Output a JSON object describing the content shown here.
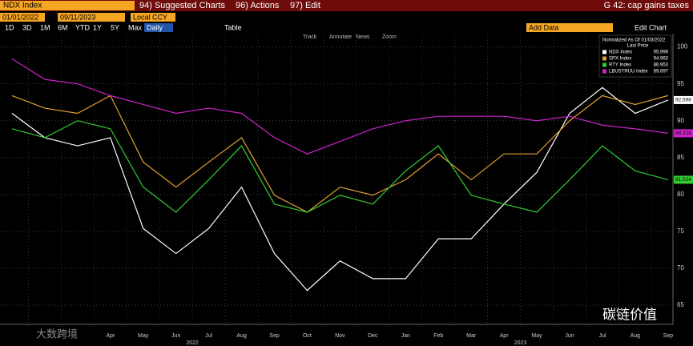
{
  "toolbar": {
    "security": "NDX Index",
    "menu": [
      "94) Suggested Charts",
      "96) Actions",
      "97) Edit"
    ],
    "function": "G 42: cap gains taxes",
    "start_date": "01/01/2022",
    "end_date": "09/11/2023",
    "currency": "Local CCY",
    "ranges": [
      "1D",
      "3D",
      "1M",
      "6M",
      "YTD",
      "1Y",
      "5Y",
      "Max"
    ],
    "frequency": "Daily",
    "table": "Table",
    "add_data": "Add Data",
    "edit_chart": "Edit Chart",
    "tools": [
      "Track",
      "Annotate",
      "News",
      "Zoom"
    ]
  },
  "watermarks": [
    "大数跨境",
    "碳链价值"
  ],
  "chart_data": {
    "type": "line",
    "legend_title": "Normalized As Of 01/03/2022",
    "legend_subtitle": "Last Price",
    "legend": "top-right",
    "grid": true,
    "categories": [
      null,
      null,
      null,
      "Apr",
      "May",
      "Jun",
      "Jul",
      "Aug",
      "Sep",
      "Oct",
      "Nov",
      "Dec",
      "Jan",
      "Feb",
      "Mar",
      "Apr",
      "May",
      "Jun",
      "Jul",
      "Aug",
      "Sep"
    ],
    "x_group_labels": [
      {
        "label": "2022",
        "index": 5.5
      },
      {
        "label": "2023",
        "index": 15.5
      }
    ],
    "ylim": [
      62.4,
      101.8
    ],
    "yticks": [
      65,
      70,
      75,
      80,
      85,
      90,
      95,
      100
    ],
    "series": [
      {
        "name": "NDX Index",
        "legend_value": "95.998",
        "last_label": "92.598",
        "color": "#ffffff",
        "values": [
          91,
          87.7,
          86.6,
          87.7,
          75.4,
          72,
          75.4,
          81,
          72,
          67,
          71,
          68.6,
          68.6,
          74,
          74,
          78.7,
          83,
          91,
          94.5,
          91,
          92.8
        ]
      },
      {
        "name": "SPX Index",
        "legend_value": "94.963",
        "last_label": null,
        "color": "#e0a030",
        "values": [
          93.4,
          91.7,
          91,
          93.4,
          84.4,
          81,
          84.4,
          87.7,
          79.9,
          77.6,
          81,
          79.9,
          82,
          85.5,
          82,
          85.5,
          85.5,
          90,
          93.4,
          92.2,
          93.4
        ]
      },
      {
        "name": "RTY Index",
        "legend_value": "86.953",
        "last_label": "81.524",
        "color": "#33cc33",
        "values": [
          88.9,
          87.7,
          90,
          88.9,
          81,
          77.6,
          82,
          86.6,
          78.7,
          77.6,
          79.9,
          78.7,
          83.2,
          86.6,
          79.9,
          78.7,
          77.6,
          82,
          86.6,
          83.2,
          82
        ]
      },
      {
        "name": "LBUSTRUU Index",
        "legend_value": "89.897",
        "last_label": "88.218",
        "color": "#cc22cc",
        "values": [
          98.4,
          95.6,
          95,
          93.4,
          92.2,
          91,
          91.7,
          91,
          87.7,
          85.5,
          87.2,
          88.9,
          90,
          90.6,
          90.6,
          90.6,
          90,
          90.6,
          89.4,
          88.9,
          88.3
        ]
      }
    ]
  }
}
